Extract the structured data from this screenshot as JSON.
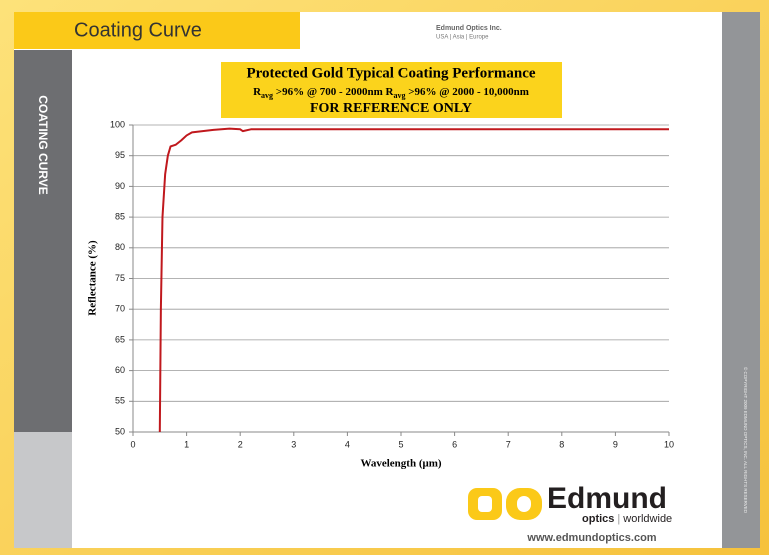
{
  "header": {
    "title": "Coating Curve",
    "company": "Edmund Optics Inc.",
    "regions": "USA | Asia | Europe"
  },
  "side_label": "COATING CURVE",
  "copyright": "© COPYRIGHT 2009 EDMUND OPTICS, INC. ALL RIGHTS RESERVED",
  "logo": {
    "name": "Edmund",
    "tagline": [
      "optics",
      "|",
      "worldwide"
    ],
    "url": "www.edmundoptics.com"
  },
  "chart_data": {
    "type": "line",
    "title": "Protected Gold Typical Coating Performance",
    "subtitle": [
      "R",
      "avg",
      " >96% @ 700 - 2000nm R",
      "avg",
      " >96% @ 2000 - 10,000nm"
    ],
    "annotation": "FOR REFERENCE ONLY",
    "x_label": "Wavelength (μm)",
    "y_label": "Reflectance (%)",
    "x": [
      0.5,
      0.52,
      0.55,
      0.6,
      0.65,
      0.7,
      0.8,
      0.9,
      1.0,
      1.1,
      1.2,
      1.5,
      1.8,
      2.0,
      2.05,
      2.2,
      2.5,
      3,
      4,
      5,
      6,
      7,
      8,
      9,
      10
    ],
    "series": [
      {
        "name": "Reflectance",
        "color": "#c0181d",
        "values": [
          50,
          70,
          85,
          92,
          95,
          96.5,
          96.8,
          97.5,
          98.3,
          98.8,
          98.9,
          99.2,
          99.4,
          99.3,
          99.0,
          99.3,
          99.3,
          99.3,
          99.3,
          99.3,
          99.3,
          99.3,
          99.3,
          99.3,
          99.3
        ]
      }
    ],
    "xlim": [
      0,
      10
    ],
    "xticks": [
      0,
      1,
      2,
      3,
      4,
      5,
      6,
      7,
      8,
      9,
      10
    ],
    "ylim": [
      50,
      100
    ],
    "yticks": [
      50,
      55,
      60,
      65,
      70,
      75,
      80,
      85,
      90,
      95,
      100
    ],
    "grid": true
  }
}
